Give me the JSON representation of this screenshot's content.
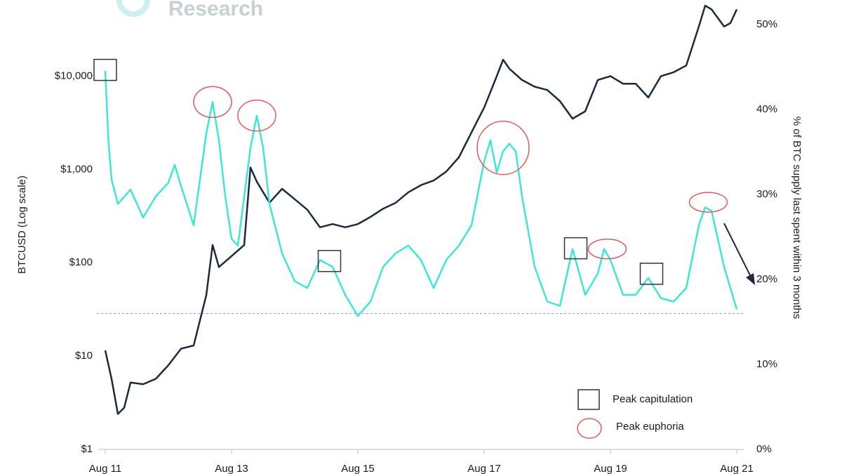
{
  "chart_data": {
    "type": "line",
    "logo_text": "Research",
    "y_label": "BTCUSD (Log scale)",
    "y2_label": "% of BTC supply last spent within 3 months",
    "xlim": [
      11,
      21
    ],
    "xticks": [
      {
        "value": 11,
        "label": "Aug 11"
      },
      {
        "value": 13,
        "label": "Aug 13"
      },
      {
        "value": 15,
        "label": "Aug 15"
      },
      {
        "value": 17,
        "label": "Aug 17"
      },
      {
        "value": 19,
        "label": "Aug 19"
      },
      {
        "value": 21,
        "label": "Aug 21"
      }
    ],
    "ylim": [
      1,
      60000
    ],
    "y_log": true,
    "yticks": [
      {
        "value": 1,
        "label": "$1"
      },
      {
        "value": 10,
        "label": "$10"
      },
      {
        "value": 100,
        "label": "$100"
      },
      {
        "value": 1000,
        "label": "$1,000"
      },
      {
        "value": 10000,
        "label": "$10,000"
      }
    ],
    "y2lim": [
      0,
      52.5
    ],
    "y2ticks": [
      {
        "value": 0,
        "label": "0%"
      },
      {
        "value": 10,
        "label": "10%"
      },
      {
        "value": 20,
        "label": "20%"
      },
      {
        "value": 30,
        "label": "30%"
      },
      {
        "value": 40,
        "label": "40%"
      },
      {
        "value": 50,
        "label": "50%"
      }
    ],
    "series": [
      {
        "color": "#1b2a41",
        "axis": "y",
        "x": [
          11.0,
          11.1,
          11.2,
          11.3,
          11.4,
          11.6,
          11.8,
          12.0,
          12.2,
          12.4,
          12.6,
          12.7,
          12.8,
          13.0,
          13.2,
          13.3,
          13.4,
          13.6,
          13.8,
          14.0,
          14.2,
          14.4,
          14.6,
          14.8,
          15.0,
          15.2,
          15.4,
          15.6,
          15.8,
          16.0,
          16.2,
          16.4,
          16.6,
          16.8,
          17.0,
          17.2,
          17.3,
          17.4,
          17.6,
          17.8,
          18.0,
          18.2,
          18.4,
          18.6,
          18.8,
          19.0,
          19.2,
          19.4,
          19.6,
          19.8,
          20.0,
          20.2,
          20.4,
          20.5,
          20.6,
          20.8,
          20.9,
          21.0
        ],
        "values": [
          11.5,
          5.7,
          2.4,
          2.8,
          5.2,
          5,
          5.7,
          8,
          12,
          13,
          45,
          155,
          90,
          118,
          155,
          1050,
          740,
          440,
          620,
          480,
          370,
          240,
          260,
          240,
          260,
          310,
          380,
          440,
          570,
          680,
          760,
          950,
          1350,
          2500,
          4600,
          10000,
          15000,
          12000,
          9100,
          7700,
          7100,
          5400,
          3500,
          4200,
          9100,
          10000,
          8300,
          8300,
          5900,
          10000,
          11000,
          13000,
          34000,
          57000,
          52000,
          34000,
          37000,
          52000
        ]
      },
      {
        "color": "#3ee6d8",
        "axis": "y2",
        "x": [
          11.0,
          11.05,
          11.1,
          11.2,
          11.4,
          11.6,
          11.8,
          12.0,
          12.1,
          12.2,
          12.4,
          12.6,
          12.7,
          12.8,
          12.9,
          13.0,
          13.1,
          13.3,
          13.4,
          13.5,
          13.6,
          13.8,
          14.0,
          14.2,
          14.4,
          14.6,
          14.8,
          15.0,
          15.2,
          15.4,
          15.6,
          15.8,
          16.0,
          16.2,
          16.4,
          16.6,
          16.8,
          17.0,
          17.1,
          17.2,
          17.3,
          17.4,
          17.5,
          17.6,
          17.8,
          18.0,
          18.2,
          18.4,
          18.6,
          18.8,
          18.9,
          19.0,
          19.2,
          19.4,
          19.6,
          19.8,
          20.0,
          20.2,
          20.4,
          20.5,
          20.6,
          20.8,
          21.0
        ],
        "values": [
          44.6,
          36.4,
          31.8,
          28.9,
          30.6,
          27.3,
          29.8,
          31.4,
          33.5,
          31,
          26.4,
          37.2,
          40.9,
          36.4,
          29.8,
          24.8,
          24,
          35.5,
          39.3,
          35.5,
          28.9,
          23.1,
          19.8,
          19,
          22.3,
          21.5,
          18.2,
          15.7,
          17.4,
          21.5,
          23.1,
          24,
          22.3,
          19,
          22.3,
          24,
          26.4,
          33.9,
          36.4,
          32.6,
          35.1,
          36,
          35.1,
          29.8,
          21.5,
          17.4,
          16.9,
          23.6,
          18.2,
          20.7,
          23.6,
          22.3,
          18.2,
          18.2,
          20.2,
          17.8,
          17.4,
          19,
          26.4,
          28.5,
          28.1,
          21.5,
          16.5
        ]
      }
    ],
    "reference_line": 16,
    "capitulation": {
      "name": "Peak capitulation",
      "x": [
        11.0,
        14.55,
        18.45,
        19.65
      ],
      "y2": [
        44.6,
        22.1,
        23.6,
        20.6
      ]
    },
    "euphoria": {
      "name": "Peak euphoria",
      "x": [
        12.7,
        13.4,
        17.3,
        18.95,
        20.55
      ],
      "y2": [
        40.9,
        39.3,
        35.5,
        23.6,
        29.1
      ]
    }
  }
}
